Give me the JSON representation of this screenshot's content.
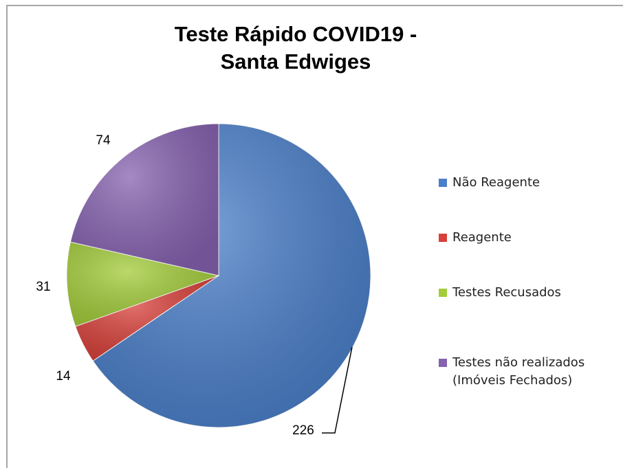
{
  "chart_data": {
    "type": "pie",
    "title": "Teste Rápido COVID19 - Santa Edwiges",
    "categories": [
      "Não Reagente",
      "Reagente",
      "Testes Recusados",
      "Testes não realizados (Imóveis Fechados)"
    ],
    "values": [
      226,
      14,
      31,
      74
    ],
    "colors": [
      "#4a7fc9",
      "#d8403a",
      "#a3cc3a",
      "#8662b0"
    ],
    "legend": "right"
  }
}
